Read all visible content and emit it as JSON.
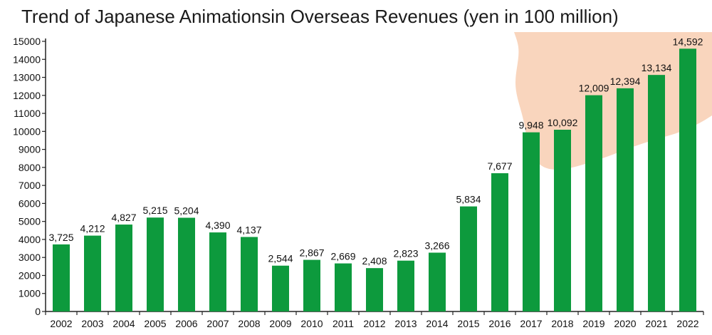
{
  "colors": {
    "bar": "#0d9a3d",
    "background_shape": "#f9d5bd",
    "axis": "#222222",
    "text": "#111111"
  },
  "chart_data": {
    "type": "bar",
    "title": "Trend of Japanese Animationsin Overseas Revenues (yen in 100 million)",
    "xlabel": "",
    "ylabel": "",
    "ylim": [
      0,
      15000
    ],
    "yticks": [
      0,
      1000,
      2000,
      3000,
      4000,
      5000,
      6000,
      7000,
      8000,
      9000,
      10000,
      11000,
      12000,
      13000,
      14000,
      15000
    ],
    "grid": false,
    "categories": [
      "2002",
      "2003",
      "2004",
      "2005",
      "2006",
      "2007",
      "2008",
      "2009",
      "2010",
      "2011",
      "2012",
      "2013",
      "2014",
      "2015",
      "2016",
      "2017",
      "2018",
      "2019",
      "2020",
      "2021",
      "2022"
    ],
    "values": [
      3725,
      4212,
      4827,
      5215,
      5204,
      4390,
      4137,
      2544,
      2867,
      2669,
      2408,
      2823,
      3266,
      5834,
      7677,
      9948,
      10092,
      12009,
      12394,
      13134,
      14592
    ],
    "value_labels": [
      "3,725",
      "4,212",
      "4,827",
      "5,215",
      "5,204",
      "4,390",
      "4,137",
      "2,544",
      "2,867",
      "2,669",
      "2,408",
      "2,823",
      "3,266",
      "5,834",
      "7,677",
      "9,948",
      "10,092",
      "12,009",
      "12,394",
      "13,134",
      "14,592"
    ]
  }
}
